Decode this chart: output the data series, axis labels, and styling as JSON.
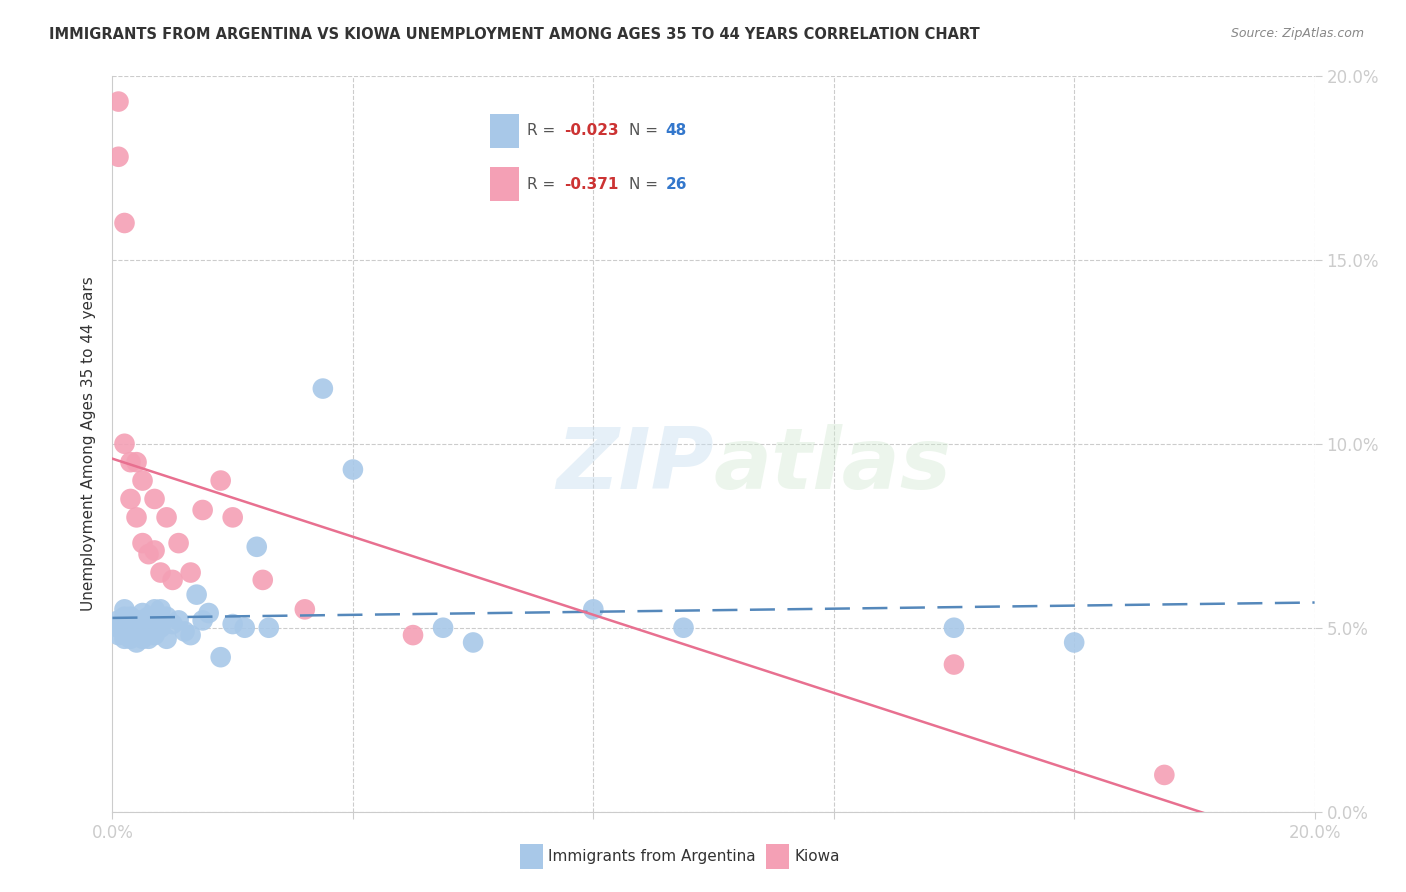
{
  "title": "IMMIGRANTS FROM ARGENTINA VS KIOWA UNEMPLOYMENT AMONG AGES 35 TO 44 YEARS CORRELATION CHART",
  "source": "Source: ZipAtlas.com",
  "ylabel": "Unemployment Among Ages 35 to 44 years",
  "xlim": [
    0.0,
    0.2
  ],
  "ylim": [
    0.0,
    0.2
  ],
  "blue_R": -0.023,
  "blue_N": 48,
  "pink_R": -0.371,
  "pink_N": 26,
  "blue_color": "#a8c8e8",
  "pink_color": "#f4a0b5",
  "blue_line_color": "#5588bb",
  "pink_line_color": "#e87090",
  "watermark_text": "ZIPatlas",
  "blue_scatter_x": [
    0.001,
    0.001,
    0.001,
    0.002,
    0.002,
    0.002,
    0.002,
    0.003,
    0.003,
    0.003,
    0.003,
    0.004,
    0.004,
    0.004,
    0.005,
    0.005,
    0.005,
    0.005,
    0.006,
    0.006,
    0.006,
    0.007,
    0.007,
    0.007,
    0.008,
    0.008,
    0.009,
    0.009,
    0.01,
    0.011,
    0.012,
    0.013,
    0.014,
    0.015,
    0.016,
    0.018,
    0.02,
    0.022,
    0.024,
    0.026,
    0.035,
    0.04,
    0.055,
    0.06,
    0.08,
    0.095,
    0.14,
    0.16
  ],
  "blue_scatter_y": [
    0.052,
    0.05,
    0.048,
    0.055,
    0.05,
    0.047,
    0.053,
    0.051,
    0.049,
    0.053,
    0.047,
    0.052,
    0.049,
    0.046,
    0.054,
    0.05,
    0.047,
    0.052,
    0.05,
    0.047,
    0.053,
    0.055,
    0.051,
    0.048,
    0.055,
    0.05,
    0.053,
    0.047,
    0.051,
    0.052,
    0.049,
    0.048,
    0.059,
    0.052,
    0.054,
    0.042,
    0.051,
    0.05,
    0.072,
    0.05,
    0.115,
    0.093,
    0.05,
    0.046,
    0.055,
    0.05,
    0.05,
    0.046
  ],
  "pink_scatter_x": [
    0.001,
    0.001,
    0.002,
    0.002,
    0.003,
    0.003,
    0.004,
    0.004,
    0.005,
    0.005,
    0.006,
    0.007,
    0.007,
    0.008,
    0.009,
    0.01,
    0.011,
    0.013,
    0.015,
    0.018,
    0.02,
    0.025,
    0.032,
    0.05,
    0.14,
    0.175
  ],
  "pink_scatter_y": [
    0.193,
    0.178,
    0.16,
    0.1,
    0.085,
    0.095,
    0.08,
    0.095,
    0.073,
    0.09,
    0.07,
    0.085,
    0.071,
    0.065,
    0.08,
    0.063,
    0.073,
    0.065,
    0.082,
    0.09,
    0.08,
    0.063,
    0.055,
    0.048,
    0.04,
    0.01
  ]
}
